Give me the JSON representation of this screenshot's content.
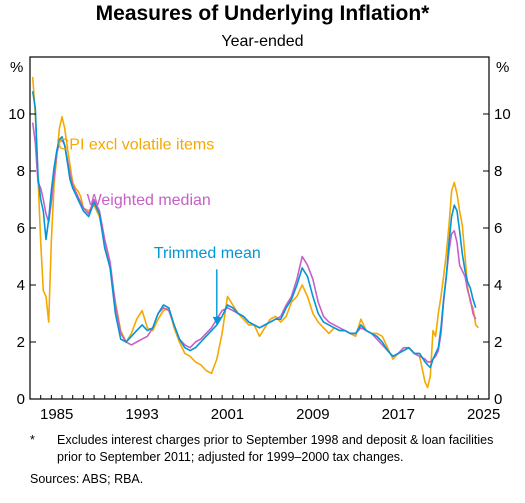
{
  "header": {
    "title": "Measures of Underlying Inflation*",
    "subtitle": "Year-ended"
  },
  "footnote": {
    "marker": "*",
    "text": "Excludes interest charges prior to September 1998 and deposit & loan facilities prior to September 2011; adjusted for 1999–2000 tax changes."
  },
  "sources": "Sources: ABS; RBA.",
  "colors": {
    "cpi_excl_volatile": "#f5a800",
    "weighted_median": "#c65fc8",
    "trimmed_mean": "#0097d6",
    "arrow": "#0097d6",
    "axis": "#000000"
  },
  "chart_data": {
    "type": "line",
    "title": "Measures of Underlying Inflation*",
    "subtitle": "Year-ended",
    "xlabel": "",
    "ylabel": "%",
    "xlim": [
      1983.0,
      2026.0
    ],
    "ylim": [
      0,
      12
    ],
    "x_ticks": [
      1985,
      1993,
      2001,
      2009,
      2017,
      2025
    ],
    "x_tick_labels": [
      "1985",
      "1993",
      "2001",
      "2009",
      "2017",
      "2025"
    ],
    "y_ticks": [
      0,
      2,
      4,
      6,
      8,
      10
    ],
    "y_tick_labels": [
      "0",
      "2",
      "4",
      "6",
      "8",
      "10"
    ],
    "y_unit_left": "%",
    "y_unit_right": "%",
    "grid": false,
    "legend": "inline labels",
    "series": [
      {
        "name": "CPI excl volatile items",
        "x": [
          1983.25,
          1983.5,
          1983.75,
          1984.0,
          1984.25,
          1984.5,
          1984.75,
          1985.0,
          1985.25,
          1985.5,
          1985.75,
          1986.0,
          1986.25,
          1986.5,
          1986.75,
          1987.0,
          1987.25,
          1987.5,
          1987.75,
          1988.0,
          1988.5,
          1989.0,
          1989.5,
          1990.0,
          1990.5,
          1991.0,
          1991.5,
          1992.0,
          1992.5,
          1993.0,
          1993.5,
          1994.0,
          1994.5,
          1995.0,
          1995.5,
          1996.0,
          1996.5,
          1997.0,
          1997.5,
          1998.0,
          1998.5,
          1999.0,
          1999.5,
          2000.0,
          2000.5,
          2001.0,
          2001.5,
          2002.0,
          2002.5,
          2003.0,
          2003.5,
          2004.0,
          2004.5,
          2005.0,
          2005.5,
          2006.0,
          2006.5,
          2007.0,
          2007.5,
          2008.0,
          2008.5,
          2009.0,
          2009.5,
          2010.0,
          2010.5,
          2011.0,
          2011.5,
          2012.0,
          2012.5,
          2013.0,
          2013.5,
          2014.0,
          2014.5,
          2015.0,
          2015.5,
          2016.0,
          2016.5,
          2017.0,
          2017.5,
          2018.0,
          2018.5,
          2019.0,
          2019.5,
          2020.0,
          2020.25,
          2020.5,
          2020.75,
          2021.0,
          2021.25,
          2021.5,
          2021.75,
          2022.0,
          2022.25,
          2022.5,
          2022.75,
          2023.0,
          2023.25,
          2023.5,
          2023.75,
          2024.0,
          2024.25,
          2024.5,
          2024.75,
          2025.0
        ],
        "y": [
          11.3,
          10.0,
          7.8,
          5.5,
          3.8,
          3.6,
          2.7,
          5.5,
          7.5,
          8.5,
          9.5,
          9.9,
          9.5,
          8.8,
          8.2,
          7.6,
          7.4,
          7.3,
          7.1,
          6.7,
          6.6,
          6.8,
          6.4,
          5.5,
          4.6,
          3.4,
          2.4,
          2.0,
          2.3,
          2.8,
          3.1,
          2.5,
          2.4,
          2.8,
          3.1,
          3.2,
          2.5,
          2.0,
          1.6,
          1.5,
          1.3,
          1.2,
          1.0,
          0.9,
          1.4,
          2.3,
          3.6,
          3.3,
          3.0,
          2.8,
          2.6,
          2.6,
          2.2,
          2.5,
          2.8,
          2.9,
          2.7,
          2.9,
          3.4,
          3.6,
          4.0,
          3.6,
          3.0,
          2.7,
          2.5,
          2.3,
          2.5,
          2.4,
          2.4,
          2.3,
          2.2,
          2.8,
          2.4,
          2.3,
          2.3,
          2.2,
          1.8,
          1.4,
          1.6,
          1.7,
          1.8,
          1.6,
          1.5,
          0.6,
          0.4,
          0.8,
          2.4,
          2.2,
          3.0,
          3.6,
          4.3,
          5.1,
          6.1,
          7.3,
          7.6,
          7.2,
          6.6,
          6.1,
          5.0,
          3.9,
          3.4,
          3.2,
          2.6,
          2.5
        ],
        "label": "CPI excl volatile items"
      },
      {
        "name": "Weighted median",
        "x": [
          1983.25,
          1983.5,
          1983.75,
          1984.0,
          1984.25,
          1984.5,
          1984.75,
          1985.0,
          1985.25,
          1985.5,
          1985.75,
          1986.0,
          1986.25,
          1986.5,
          1986.75,
          1987.0,
          1987.25,
          1987.5,
          1987.75,
          1988.0,
          1988.5,
          1989.0,
          1989.5,
          1990.0,
          1990.5,
          1991.0,
          1991.5,
          1992.0,
          1992.5,
          1993.0,
          1993.5,
          1994.0,
          1994.5,
          1995.0,
          1995.5,
          1996.0,
          1996.5,
          1997.0,
          1997.5,
          1998.0,
          1998.5,
          1999.0,
          1999.5,
          2000.0,
          2000.5,
          2001.0,
          2001.5,
          2002.0,
          2002.5,
          2003.0,
          2003.5,
          2004.0,
          2004.5,
          2005.0,
          2005.5,
          2006.0,
          2006.5,
          2007.0,
          2007.5,
          2008.0,
          2008.5,
          2009.0,
          2009.5,
          2010.0,
          2010.5,
          2011.0,
          2011.5,
          2012.0,
          2012.5,
          2013.0,
          2013.5,
          2014.0,
          2014.5,
          2015.0,
          2015.5,
          2016.0,
          2016.5,
          2017.0,
          2017.5,
          2018.0,
          2018.5,
          2019.0,
          2019.5,
          2020.0,
          2020.25,
          2020.5,
          2020.75,
          2021.0,
          2021.25,
          2021.5,
          2021.75,
          2022.0,
          2022.25,
          2022.5,
          2022.75,
          2023.0,
          2023.25,
          2023.5,
          2023.75,
          2024.0,
          2024.25,
          2024.5,
          2024.75
        ],
        "y": [
          9.7,
          9.0,
          7.6,
          7.4,
          7.0,
          6.5,
          6.2,
          6.9,
          7.8,
          8.6,
          9.0,
          9.1,
          8.9,
          8.4,
          7.9,
          7.5,
          7.3,
          7.1,
          6.9,
          6.7,
          6.5,
          7.0,
          6.6,
          5.6,
          4.8,
          3.3,
          2.3,
          2.0,
          1.9,
          2.0,
          2.1,
          2.2,
          2.5,
          3.0,
          3.2,
          3.1,
          2.6,
          2.1,
          1.9,
          1.8,
          2.0,
          2.1,
          2.3,
          2.5,
          2.8,
          3.1,
          3.2,
          3.1,
          3.0,
          2.9,
          2.7,
          2.6,
          2.5,
          2.6,
          2.7,
          2.8,
          2.9,
          3.3,
          3.6,
          4.2,
          5.0,
          4.7,
          4.2,
          3.4,
          2.9,
          2.7,
          2.6,
          2.5,
          2.4,
          2.3,
          2.3,
          2.5,
          2.4,
          2.3,
          2.1,
          1.9,
          1.7,
          1.5,
          1.6,
          1.8,
          1.8,
          1.6,
          1.5,
          1.4,
          1.3,
          1.3,
          1.4,
          1.5,
          1.7,
          2.3,
          3.4,
          4.3,
          5.2,
          5.8,
          5.9,
          5.5,
          4.7,
          4.5,
          4.3,
          3.8,
          3.5,
          3.0,
          2.8
        ]
      },
      {
        "name": "Trimmed mean",
        "x": [
          1983.25,
          1983.5,
          1983.75,
          1984.0,
          1984.25,
          1984.5,
          1984.75,
          1985.0,
          1985.25,
          1985.5,
          1985.75,
          1986.0,
          1986.25,
          1986.5,
          1986.75,
          1987.0,
          1987.25,
          1987.5,
          1987.75,
          1988.0,
          1988.5,
          1989.0,
          1989.5,
          1990.0,
          1990.5,
          1991.0,
          1991.5,
          1992.0,
          1992.5,
          1993.0,
          1993.5,
          1994.0,
          1994.5,
          1995.0,
          1995.5,
          1996.0,
          1996.5,
          1997.0,
          1997.5,
          1998.0,
          1998.5,
          1999.0,
          1999.5,
          2000.0,
          2000.5,
          2001.0,
          2001.5,
          2002.0,
          2002.5,
          2003.0,
          2003.5,
          2004.0,
          2004.5,
          2005.0,
          2005.5,
          2006.0,
          2006.5,
          2007.0,
          2007.5,
          2008.0,
          2008.5,
          2009.0,
          2009.5,
          2010.0,
          2010.5,
          2011.0,
          2011.5,
          2012.0,
          2012.5,
          2013.0,
          2013.5,
          2014.0,
          2014.5,
          2015.0,
          2015.5,
          2016.0,
          2016.5,
          2017.0,
          2017.5,
          2018.0,
          2018.5,
          2019.0,
          2019.5,
          2020.0,
          2020.25,
          2020.5,
          2020.75,
          2021.0,
          2021.25,
          2021.5,
          2021.75,
          2022.0,
          2022.25,
          2022.5,
          2022.75,
          2023.0,
          2023.25,
          2023.5,
          2023.75,
          2024.0,
          2024.25,
          2024.5,
          2024.75
        ],
        "y": [
          10.8,
          10.2,
          7.8,
          7.0,
          6.6,
          5.6,
          6.3,
          7.3,
          8.1,
          8.7,
          9.1,
          9.2,
          8.9,
          8.3,
          7.7,
          7.4,
          7.2,
          7.0,
          6.8,
          6.6,
          6.4,
          6.9,
          6.5,
          5.3,
          4.6,
          3.0,
          2.1,
          2.0,
          2.2,
          2.4,
          2.6,
          2.4,
          2.5,
          3.0,
          3.3,
          3.2,
          2.6,
          2.1,
          1.8,
          1.7,
          1.8,
          2.0,
          2.2,
          2.4,
          2.6,
          2.9,
          3.3,
          3.2,
          3.0,
          2.9,
          2.7,
          2.6,
          2.5,
          2.6,
          2.7,
          2.8,
          2.8,
          3.2,
          3.5,
          4.0,
          4.6,
          4.3,
          3.6,
          3.0,
          2.7,
          2.6,
          2.5,
          2.4,
          2.4,
          2.3,
          2.3,
          2.6,
          2.4,
          2.3,
          2.2,
          2.0,
          1.7,
          1.5,
          1.6,
          1.7,
          1.8,
          1.6,
          1.6,
          1.3,
          1.2,
          1.1,
          1.4,
          1.6,
          1.8,
          2.5,
          3.5,
          4.3,
          5.5,
          6.4,
          6.8,
          6.6,
          5.9,
          5.1,
          4.5,
          4.1,
          3.9,
          3.5,
          3.2
        ],
        "label": "Trimmed mean"
      }
    ],
    "annotations": [
      {
        "text": "CPI excl volatile items",
        "series": "CPI excl volatile items"
      },
      {
        "text": "Weighted median",
        "series": "Weighted median"
      },
      {
        "text": "Trimmed mean",
        "series": "Trimmed mean",
        "arrow_points_to": [
          2000.5,
          2.6
        ]
      }
    ]
  }
}
